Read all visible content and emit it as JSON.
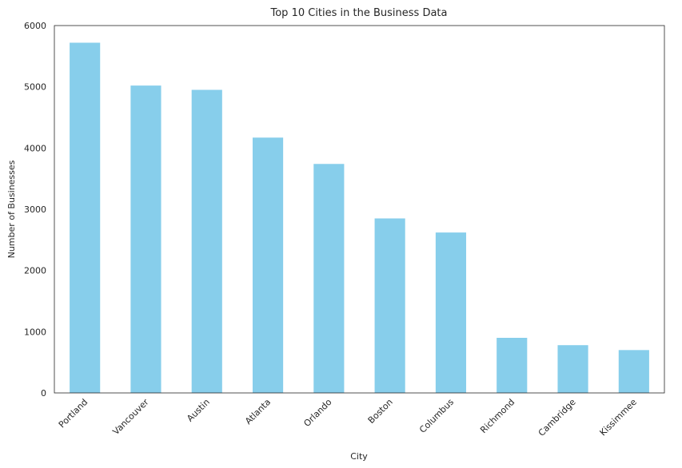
{
  "chart_data": {
    "type": "bar",
    "title": "Top 10 Cities in the Business Data",
    "xlabel": "City",
    "ylabel": "Number of Businesses",
    "categories": [
      "Portland",
      "Vancouver",
      "Austin",
      "Atlanta",
      "Orlando",
      "Boston",
      "Columbus",
      "Richmond",
      "Cambridge",
      "Kissimmee"
    ],
    "values": [
      5720,
      5020,
      4950,
      4170,
      3740,
      2850,
      2620,
      900,
      780,
      700
    ],
    "ylim": [
      0,
      6000
    ],
    "yticks": [
      0,
      1000,
      2000,
      3000,
      4000,
      5000,
      6000
    ],
    "bar_color": "#87CEEB",
    "grid": false,
    "legend": "none"
  }
}
